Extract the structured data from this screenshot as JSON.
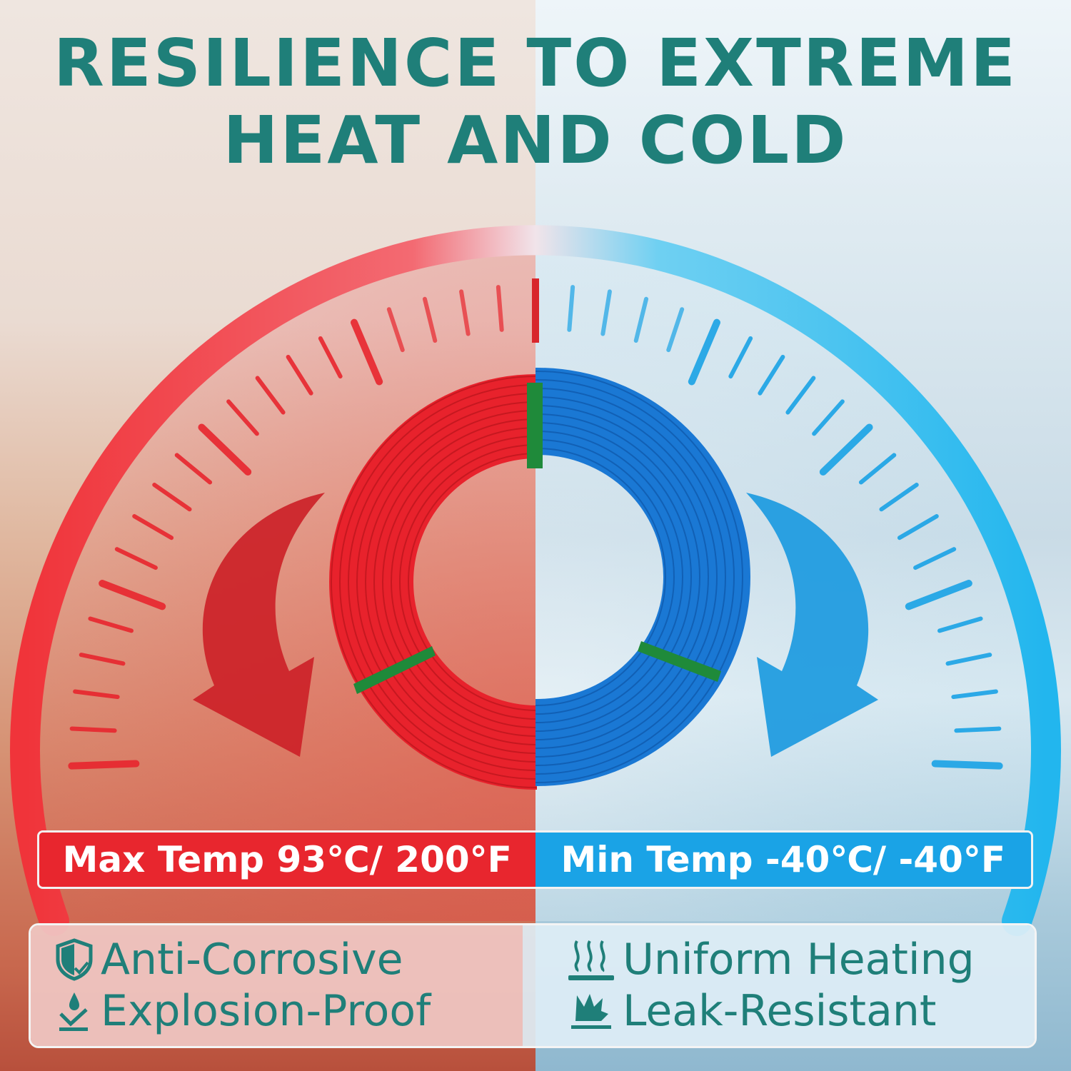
{
  "title": {
    "line1": "RESILIENCE TO EXTREME",
    "line2": "HEAT AND COLD"
  },
  "colors": {
    "title": "#1f7f79",
    "heat": "#e8262e",
    "cold": "#1aa3e6",
    "tie": "#1f8a3a"
  },
  "temperatures": {
    "max": "Max Temp 93℃/ 200°F",
    "min": "Min Temp -40℃/ -40°F"
  },
  "features": [
    {
      "icon": "shield-check-icon",
      "label": "Anti-Corrosive"
    },
    {
      "icon": "drop-pressure-icon",
      "label": "Explosion-Proof"
    },
    {
      "icon": "heat-waves-icon",
      "label": "Uniform Heating"
    },
    {
      "icon": "burst-icon",
      "label": "Leak-Resistant"
    }
  ]
}
